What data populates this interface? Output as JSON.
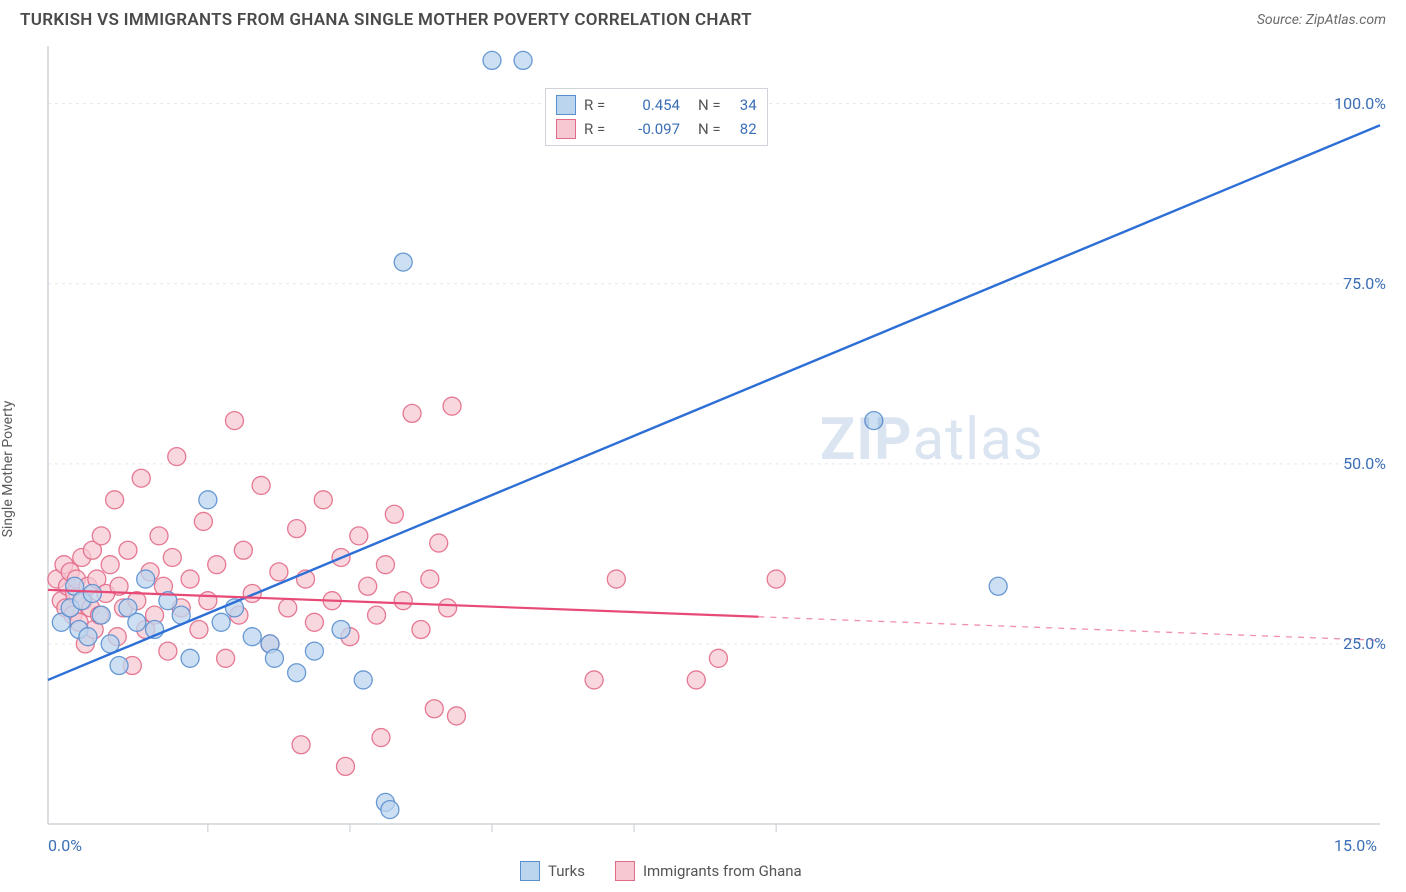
{
  "title": "TURKISH VS IMMIGRANTS FROM GHANA SINGLE MOTHER POVERTY CORRELATION CHART",
  "source": "Source: ZipAtlas.com",
  "ylabel": "Single Mother Poverty",
  "watermark_a": "ZIP",
  "watermark_b": "atlas",
  "chart": {
    "type": "scatter",
    "xlim": [
      0,
      15
    ],
    "ylim": [
      0,
      108
    ],
    "x_tick_positions": [
      1.8,
      3.4,
      5.0,
      6.6,
      8.2
    ],
    "x_axis_labels": [
      {
        "val": "0.0%",
        "x": 0
      },
      {
        "val": "15.0%",
        "x": 15
      }
    ],
    "y_axis_labels": [
      {
        "val": "25.0%",
        "y": 25
      },
      {
        "val": "50.0%",
        "y": 50
      },
      {
        "val": "75.0%",
        "y": 75
      },
      {
        "val": "100.0%",
        "y": 100
      }
    ],
    "grid_color": "#e4e6ea",
    "border_color": "#cfd3d9",
    "background": "#ffffff",
    "series": [
      {
        "name": "Turks",
        "r": "0.454",
        "n": "34",
        "marker_fill": "#bcd5ef",
        "marker_stroke": "#5a8fce",
        "marker_opacity": 0.75,
        "marker_radius": 9,
        "line_color": "#2d6fd6",
        "line_width": 2.4,
        "solid_x_end": 15,
        "trend": {
          "x1": 0,
          "y1": 20,
          "x2": 15,
          "y2": 97
        },
        "points": [
          [
            0.15,
            28
          ],
          [
            0.25,
            30
          ],
          [
            0.3,
            33
          ],
          [
            0.35,
            27
          ],
          [
            0.38,
            31
          ],
          [
            0.45,
            26
          ],
          [
            0.5,
            32
          ],
          [
            0.6,
            29
          ],
          [
            0.7,
            25
          ],
          [
            0.8,
            22
          ],
          [
            0.9,
            30
          ],
          [
            1.0,
            28
          ],
          [
            1.1,
            34
          ],
          [
            1.2,
            27
          ],
          [
            1.35,
            31
          ],
          [
            1.5,
            29
          ],
          [
            1.6,
            23
          ],
          [
            1.8,
            45
          ],
          [
            1.95,
            28
          ],
          [
            2.1,
            30
          ],
          [
            2.3,
            26
          ],
          [
            2.5,
            25
          ],
          [
            2.55,
            23
          ],
          [
            2.8,
            21
          ],
          [
            3.0,
            24
          ],
          [
            3.3,
            27
          ],
          [
            3.55,
            20
          ],
          [
            3.8,
            3
          ],
          [
            3.85,
            2
          ],
          [
            4.0,
            78
          ],
          [
            5.0,
            106
          ],
          [
            5.35,
            106
          ],
          [
            9.3,
            56
          ],
          [
            10.7,
            33
          ]
        ]
      },
      {
        "name": "Immigrants from Ghana",
        "r": "-0.097",
        "n": "82",
        "marker_fill": "#f6c8d2",
        "marker_stroke": "#e26b87",
        "marker_opacity": 0.72,
        "marker_radius": 9,
        "line_color": "#e84a77",
        "line_width": 2.2,
        "solid_x_end": 8.0,
        "trend": {
          "x1": 0,
          "y1": 32.5,
          "x2": 15,
          "y2": 25.5
        },
        "points": [
          [
            0.1,
            34
          ],
          [
            0.15,
            31
          ],
          [
            0.18,
            36
          ],
          [
            0.2,
            30
          ],
          [
            0.22,
            33
          ],
          [
            0.25,
            35
          ],
          [
            0.28,
            29
          ],
          [
            0.3,
            32
          ],
          [
            0.32,
            34
          ],
          [
            0.35,
            28
          ],
          [
            0.38,
            37
          ],
          [
            0.4,
            31
          ],
          [
            0.42,
            25
          ],
          [
            0.45,
            33
          ],
          [
            0.48,
            30
          ],
          [
            0.5,
            38
          ],
          [
            0.52,
            27
          ],
          [
            0.55,
            34
          ],
          [
            0.58,
            29
          ],
          [
            0.6,
            40
          ],
          [
            0.65,
            32
          ],
          [
            0.7,
            36
          ],
          [
            0.75,
            45
          ],
          [
            0.78,
            26
          ],
          [
            0.8,
            33
          ],
          [
            0.85,
            30
          ],
          [
            0.9,
            38
          ],
          [
            0.95,
            22
          ],
          [
            1.0,
            31
          ],
          [
            1.05,
            48
          ],
          [
            1.1,
            27
          ],
          [
            1.15,
            35
          ],
          [
            1.2,
            29
          ],
          [
            1.25,
            40
          ],
          [
            1.3,
            33
          ],
          [
            1.35,
            24
          ],
          [
            1.4,
            37
          ],
          [
            1.45,
            51
          ],
          [
            1.5,
            30
          ],
          [
            1.6,
            34
          ],
          [
            1.7,
            27
          ],
          [
            1.75,
            42
          ],
          [
            1.8,
            31
          ],
          [
            1.9,
            36
          ],
          [
            2.0,
            23
          ],
          [
            2.1,
            56
          ],
          [
            2.15,
            29
          ],
          [
            2.2,
            38
          ],
          [
            2.3,
            32
          ],
          [
            2.4,
            47
          ],
          [
            2.5,
            25
          ],
          [
            2.6,
            35
          ],
          [
            2.7,
            30
          ],
          [
            2.8,
            41
          ],
          [
            2.85,
            11
          ],
          [
            2.9,
            34
          ],
          [
            3.0,
            28
          ],
          [
            3.1,
            45
          ],
          [
            3.2,
            31
          ],
          [
            3.3,
            37
          ],
          [
            3.35,
            8
          ],
          [
            3.4,
            26
          ],
          [
            3.5,
            40
          ],
          [
            3.6,
            33
          ],
          [
            3.7,
            29
          ],
          [
            3.75,
            12
          ],
          [
            3.8,
            36
          ],
          [
            3.9,
            43
          ],
          [
            4.0,
            31
          ],
          [
            4.1,
            57
          ],
          [
            4.2,
            27
          ],
          [
            4.3,
            34
          ],
          [
            4.35,
            16
          ],
          [
            4.4,
            39
          ],
          [
            4.5,
            30
          ],
          [
            4.55,
            58
          ],
          [
            4.6,
            15
          ],
          [
            6.15,
            20
          ],
          [
            6.4,
            34
          ],
          [
            7.3,
            20
          ],
          [
            7.55,
            23
          ],
          [
            8.2,
            34
          ]
        ]
      }
    ]
  },
  "legend_top": [
    {
      "swfill": "#bcd5ef",
      "swstroke": "#5a8fce",
      "r": "0.454",
      "n": "34"
    },
    {
      "swfill": "#f6c8d2",
      "swstroke": "#e26b87",
      "r": "-0.097",
      "n": "82"
    }
  ],
  "legend_bottom": [
    {
      "swfill": "#bcd5ef",
      "swstroke": "#5a8fce",
      "label": "Turks"
    },
    {
      "swfill": "#f6c8d2",
      "swstroke": "#e26b87",
      "label": "Immigrants from Ghana"
    }
  ],
  "r_prefix": "R =",
  "n_prefix": "N ="
}
